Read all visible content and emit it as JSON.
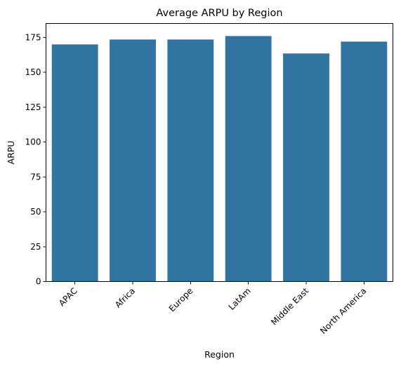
{
  "chart_data": {
    "type": "bar",
    "title": "Average ARPU by Region",
    "xlabel": "Region",
    "ylabel": "ARPU",
    "categories": [
      "APAC",
      "Africa",
      "Europe",
      "LatAm",
      "Middle East",
      "North America"
    ],
    "values": [
      170,
      173.5,
      173.5,
      176,
      163.5,
      172
    ],
    "ylim": [
      0,
      185
    ],
    "yticks": [
      0,
      25,
      50,
      75,
      100,
      125,
      150,
      175
    ],
    "bar_color": "#3274a1",
    "grid": false,
    "legend": "none"
  }
}
